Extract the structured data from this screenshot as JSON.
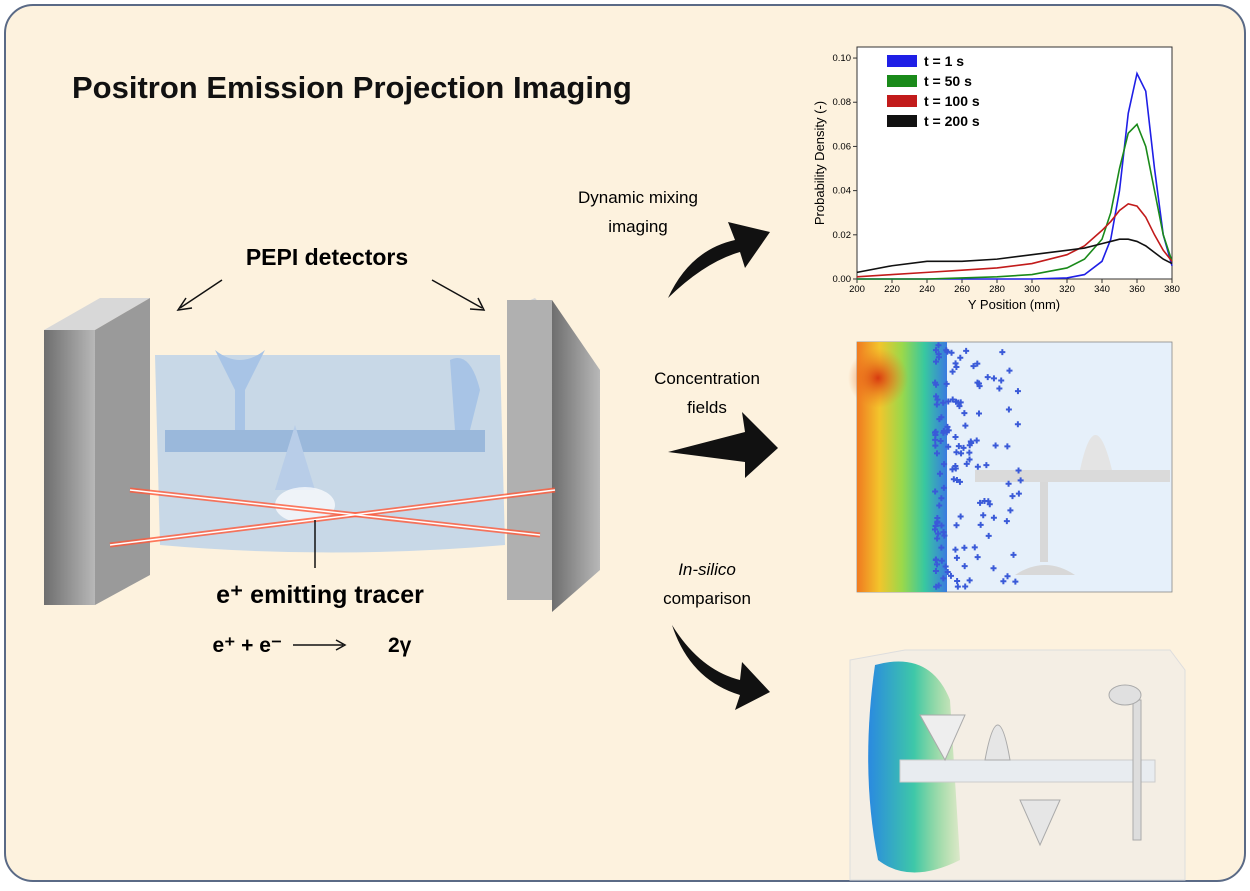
{
  "title": "Positron Emission Projection Imaging",
  "detectors_label": "PEPI detectors",
  "tracer_label": "e⁺ emitting tracer",
  "equation": {
    "left": "e⁺ + e⁻",
    "right": "2γ"
  },
  "arrows": {
    "dynamic": [
      "Dynamic mixing",
      "imaging"
    ],
    "concentration": [
      "Concentration",
      "fields"
    ],
    "insilico": {
      "italic": "In-silico",
      "rest": "comparison"
    }
  },
  "chart_data": {
    "type": "line",
    "x_label": "Y Position (mm)",
    "y_label": "Probability Density (-)",
    "x": [
      200,
      220,
      240,
      260,
      280,
      300,
      320,
      330,
      340,
      345,
      350,
      355,
      360,
      365,
      370,
      375,
      380
    ],
    "series": [
      {
        "name": "t = 1 s",
        "color": "#1f1fe6",
        "values": [
          0,
          0,
          0,
          0,
          0,
          0,
          0.0005,
          0.002,
          0.008,
          0.018,
          0.04,
          0.075,
          0.093,
          0.085,
          0.05,
          0.02,
          0.006
        ]
      },
      {
        "name": "t = 50 s",
        "color": "#1a8a1a",
        "values": [
          0,
          0,
          0,
          0.0005,
          0.001,
          0.002,
          0.005,
          0.009,
          0.018,
          0.03,
          0.05,
          0.066,
          0.07,
          0.06,
          0.04,
          0.02,
          0.008
        ]
      },
      {
        "name": "t = 100 s",
        "color": "#c21b1b",
        "values": [
          0.001,
          0.002,
          0.003,
          0.004,
          0.005,
          0.007,
          0.011,
          0.015,
          0.022,
          0.026,
          0.031,
          0.034,
          0.033,
          0.028,
          0.02,
          0.013,
          0.008
        ]
      },
      {
        "name": "t = 200 s",
        "color": "#111111",
        "values": [
          0.003,
          0.006,
          0.008,
          0.008,
          0.009,
          0.011,
          0.013,
          0.014,
          0.016,
          0.017,
          0.018,
          0.018,
          0.017,
          0.015,
          0.012,
          0.009,
          0.007
        ]
      }
    ],
    "xlim": [
      200,
      380
    ],
    "ylim": [
      0,
      0.105
    ],
    "xticks": [
      200,
      220,
      240,
      260,
      280,
      300,
      320,
      340,
      360,
      380
    ],
    "yticks": [
      {
        "value": 0,
        "label": "0.00"
      },
      {
        "value": 0.02,
        "label": "0.02"
      },
      {
        "value": 0.04,
        "label": "0.04"
      },
      {
        "value": 0.06,
        "label": "0.06"
      },
      {
        "value": 0.08,
        "label": "0.08"
      },
      {
        "value": 0.1,
        "label": "0.10"
      }
    ]
  }
}
